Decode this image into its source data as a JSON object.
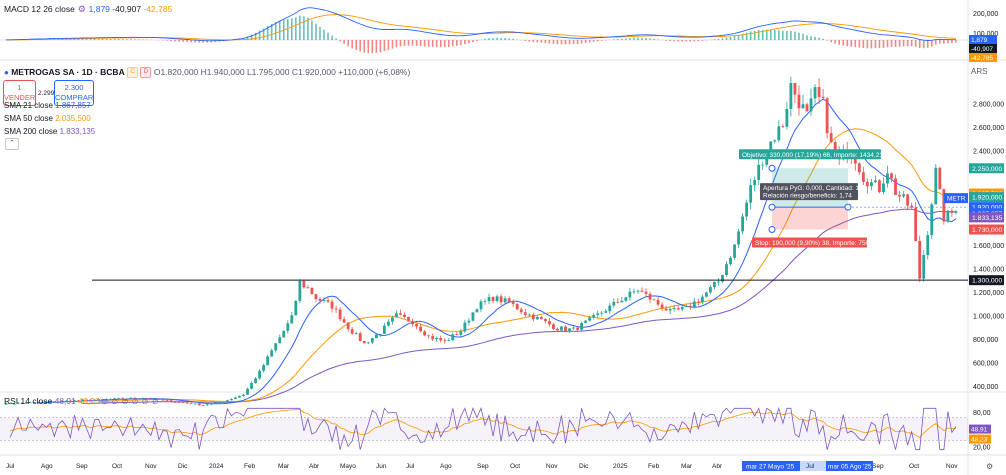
{
  "macd": {
    "title": "MACD 12 26 close",
    "v1": "1,879",
    "v2": "-40,907",
    "v3": "-42,785",
    "scale_labels": [
      "200,000",
      "100,000"
    ],
    "tags": [
      {
        "text": "1,879",
        "bg": "#2962ff"
      },
      {
        "text": "-40,907",
        "bg": "#131722"
      },
      {
        "text": "-42,785",
        "bg": "#ff9800"
      }
    ]
  },
  "symbol": {
    "name": "METROGAS SA · 1D · BCBA",
    "badge1": "C",
    "badge2": "D",
    "ohlc": "O1.820,000 H1.940,000 L1.795,000 C1.920,000 +110,000 (+6,08%)",
    "currency": "ARS"
  },
  "trade": {
    "sell_price": "1",
    "sell_label": "VENDER",
    "spread": "2.299",
    "buy_price": "2.300",
    "buy_label": "COMPRAR"
  },
  "indicators": [
    {
      "label": "SMA 21 close",
      "value": "1.867,857",
      "color": "#2962ff"
    },
    {
      "label": "SMA 50 close",
      "value": "2.035,500",
      "color": "#ff9800"
    },
    {
      "label": "SMA 200 close",
      "value": "1.833,135",
      "color": "#7e57c2"
    }
  ],
  "position": {
    "target_label": "Objetivo: 330,000 (17,19%) 66, Importe: 1434,21",
    "info_line1": "Apertura PyG: 0,000, Cantidad: 1",
    "info_line2": "Relación riesgo/beneficio: 1,74",
    "stop_label": "Stop: 190,000 (9,90%) 38, Importe: 750",
    "target_price": 2250,
    "entry_price": 1920,
    "stop_price": 1730
  },
  "price_tags": [
    {
      "text": "2.250,000",
      "bg": "#26a69a",
      "value": 2250
    },
    {
      "text": "2.035,500",
      "bg": "#ff9800",
      "value": 2035.5
    },
    {
      "text": "1.920,000",
      "bg": "#26a69a",
      "value": 1920,
      "dy": -10
    },
    {
      "text": "1.920,000",
      "bg": "#2962ff",
      "value": 1920,
      "dy": 0
    },
    {
      "text": "1.867,857",
      "bg": "#2962ff",
      "value": 1867.857
    },
    {
      "text": "1.833,135",
      "bg": "#7e57c2",
      "value": 1833.135
    },
    {
      "text": "1.730,000",
      "bg": "#ef5350",
      "value": 1730
    },
    {
      "text": "1.300,000",
      "bg": "#131722",
      "value": 1300
    }
  ],
  "metr_tag": "METR",
  "hline_value": 1300,
  "rsi": {
    "title": "RSI 14 close",
    "v1": "48,91",
    "v2": "48,23",
    "scale_labels": [
      "80,00",
      "20,00"
    ],
    "tags": [
      {
        "text": "48,91",
        "bg": "#7e57c2"
      },
      {
        "text": "48,23",
        "bg": "#ff9800"
      }
    ]
  },
  "time_axis": {
    "labels": [
      "Jul",
      "Ago",
      "Sep",
      "Oct",
      "Nov",
      "Dic",
      "2024",
      "Feb",
      "Mar",
      "Abr",
      "Mayo",
      "Jun",
      "Jul",
      "Ago",
      "Sep",
      "Oct",
      "Nov",
      "Dic",
      "2025",
      "Feb",
      "Mar",
      "Abr",
      "Jul",
      "Sep",
      "Oct",
      "Nov"
    ],
    "highlight1": "mar 27 Mayo '25",
    "highlight2": "mar 05 Ago '25"
  },
  "chart_data": {
    "type": "candlestick",
    "currency": "ARS",
    "price_axis_ticks": [
      400,
      600,
      800,
      1000,
      1200,
      1400,
      1600,
      2400,
      2600,
      2800
    ],
    "ylim": [
      300,
      3050
    ],
    "price_path": [
      [
        0,
        250
      ],
      [
        20,
        280
      ],
      [
        35,
        300
      ],
      [
        45,
        260
      ],
      [
        50,
        240
      ],
      [
        55,
        270
      ],
      [
        60,
        330
      ],
      [
        64,
        520
      ],
      [
        68,
        760
      ],
      [
        72,
        980
      ],
      [
        74,
        1280
      ],
      [
        76,
        1230
      ],
      [
        78,
        1150
      ],
      [
        82,
        1080
      ],
      [
        86,
        900
      ],
      [
        90,
        760
      ],
      [
        94,
        860
      ],
      [
        98,
        1000
      ],
      [
        102,
        950
      ],
      [
        106,
        820
      ],
      [
        110,
        780
      ],
      [
        114,
        870
      ],
      [
        118,
        1080
      ],
      [
        122,
        1150
      ],
      [
        126,
        1110
      ],
      [
        130,
        1020
      ],
      [
        134,
        960
      ],
      [
        138,
        890
      ],
      [
        142,
        880
      ],
      [
        146,
        960
      ],
      [
        150,
        1050
      ],
      [
        154,
        1140
      ],
      [
        158,
        1220
      ],
      [
        162,
        1120
      ],
      [
        166,
        1030
      ],
      [
        170,
        1060
      ],
      [
        174,
        1160
      ],
      [
        178,
        1290
      ],
      [
        182,
        1590
      ],
      [
        186,
        2080
      ],
      [
        190,
        2420
      ],
      [
        194,
        2630
      ],
      [
        196,
        2950
      ],
      [
        198,
        2820
      ],
      [
        200,
        2690
      ],
      [
        202,
        2880
      ],
      [
        204,
        2780
      ],
      [
        206,
        2440
      ],
      [
        208,
        2300
      ],
      [
        210,
        2420
      ],
      [
        212,
        2340
      ],
      [
        214,
        2180
      ],
      [
        216,
        2120
      ],
      [
        218,
        2080
      ],
      [
        220,
        2240
      ],
      [
        222,
        2050
      ],
      [
        224,
        1980
      ],
      [
        226,
        1900
      ],
      [
        228,
        1320
      ],
      [
        230,
        1720
      ],
      [
        232,
        2220
      ],
      [
        234,
        1830
      ],
      [
        236,
        1870
      ],
      [
        237,
        1920
      ]
    ],
    "series": [
      {
        "name": "SMA 21 close",
        "value": 1867.857
      },
      {
        "name": "SMA 50 close",
        "value": 2035.5
      },
      {
        "name": "SMA 200 close",
        "value": 1833.135
      }
    ],
    "macd": {
      "macd": 1.879,
      "signal": -40.907,
      "histogram": -42.785
    },
    "rsi": {
      "rsi": 48.91,
      "ma": 48.23,
      "levels": [
        30,
        70
      ]
    },
    "horizontal_line": 1300,
    "x_labels": [
      "Jul",
      "Ago",
      "Sep",
      "Oct",
      "Nov",
      "Dic",
      "2024",
      "Feb",
      "Mar",
      "Abr",
      "Mayo",
      "Jun",
      "Jul",
      "Ago",
      "Sep",
      "Oct",
      "Nov",
      "Dic",
      "2025",
      "Feb",
      "Mar",
      "Abr",
      "Jul",
      "Sep",
      "Oct",
      "Nov"
    ]
  }
}
